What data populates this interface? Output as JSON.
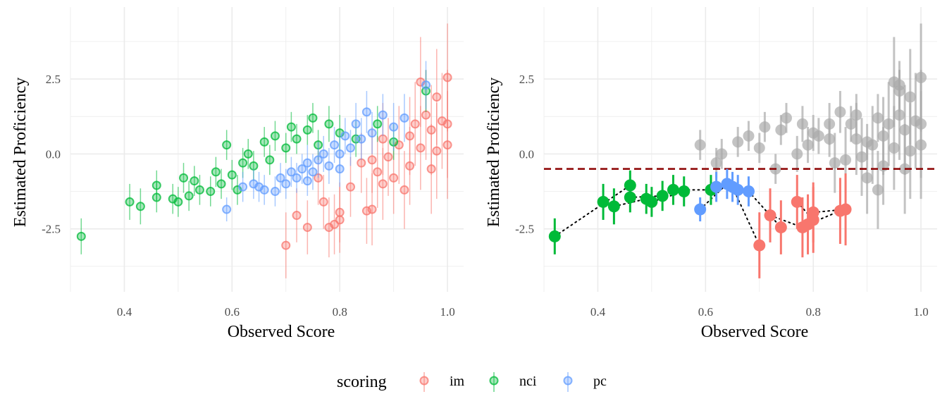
{
  "chart_data": [
    {
      "type": "scatter",
      "panel": "left",
      "xlabel": "Observed Score",
      "ylabel": "Estimated Proficiency",
      "xlim": [
        0.3,
        1.03
      ],
      "ylim": [
        -4.6,
        4.9
      ],
      "xticks": [
        0.4,
        0.6,
        0.8,
        1.0
      ],
      "xtick_labels": [
        "0.4",
        "0.6",
        "0.8",
        "1.0"
      ],
      "yticks": [
        -2.5,
        0.0,
        2.5
      ],
      "ytick_labels": [
        "-2.5",
        "0.0",
        "2.5"
      ],
      "grid": true,
      "error_bars": "vertical",
      "series": [
        {
          "name": "im",
          "color": "#F8766D",
          "points": [
            [
              0.7,
              -3.05,
              1.1
            ],
            [
              0.72,
              -2.05,
              0.9
            ],
            [
              0.74,
              -2.45,
              0.9
            ],
            [
              0.77,
              -1.6,
              0.9
            ],
            [
              0.78,
              -2.45,
              1.0
            ],
            [
              0.79,
              -2.35,
              1.0
            ],
            [
              0.8,
              -2.2,
              1.1
            ],
            [
              0.8,
              -1.95,
              1.0
            ],
            [
              0.84,
              -0.3,
              1.0
            ],
            [
              0.85,
              -1.9,
              1.1
            ],
            [
              0.86,
              -1.85,
              1.2
            ],
            [
              0.86,
              -0.2,
              1.1
            ],
            [
              0.87,
              -0.6,
              1.2
            ],
            [
              0.88,
              -1.0,
              1.2
            ],
            [
              0.89,
              -0.1,
              1.3
            ],
            [
              0.9,
              -0.8,
              1.2
            ],
            [
              0.91,
              0.3,
              1.3
            ],
            [
              0.92,
              -1.2,
              1.3
            ],
            [
              0.93,
              0.6,
              1.3
            ],
            [
              0.93,
              -0.4,
              1.3
            ],
            [
              0.94,
              1.0,
              1.4
            ],
            [
              0.95,
              0.2,
              1.4
            ],
            [
              0.95,
              2.4,
              1.5
            ],
            [
              0.96,
              1.3,
              1.5
            ],
            [
              0.97,
              0.8,
              1.5
            ],
            [
              0.97,
              -0.5,
              1.5
            ],
            [
              0.98,
              1.9,
              1.6
            ],
            [
              0.98,
              0.1,
              1.6
            ],
            [
              0.99,
              1.1,
              1.6
            ],
            [
              1.0,
              2.55,
              1.8
            ],
            [
              1.0,
              0.3,
              1.8
            ],
            [
              1.0,
              1.0,
              1.8
            ],
            [
              0.76,
              -0.8,
              0.9
            ],
            [
              0.82,
              -1.1,
              1.0
            ],
            [
              0.88,
              0.5,
              1.2
            ]
          ]
        },
        {
          "name": "nci",
          "color": "#00BA38",
          "points": [
            [
              0.32,
              -2.75,
              0.6
            ],
            [
              0.41,
              -1.6,
              0.6
            ],
            [
              0.43,
              -1.75,
              0.6
            ],
            [
              0.46,
              -1.05,
              0.5
            ],
            [
              0.46,
              -1.45,
              0.5
            ],
            [
              0.49,
              -1.5,
              0.5
            ],
            [
              0.5,
              -1.6,
              0.5
            ],
            [
              0.51,
              -0.8,
              0.5
            ],
            [
              0.52,
              -1.4,
              0.5
            ],
            [
              0.53,
              -0.9,
              0.5
            ],
            [
              0.54,
              -1.2,
              0.5
            ],
            [
              0.56,
              -1.25,
              0.5
            ],
            [
              0.57,
              -0.6,
              0.5
            ],
            [
              0.58,
              -1.0,
              0.5
            ],
            [
              0.59,
              0.3,
              0.5
            ],
            [
              0.6,
              -0.7,
              0.5
            ],
            [
              0.61,
              -1.2,
              0.5
            ],
            [
              0.62,
              -0.3,
              0.5
            ],
            [
              0.63,
              0.0,
              0.5
            ],
            [
              0.64,
              -0.4,
              0.5
            ],
            [
              0.66,
              0.4,
              0.5
            ],
            [
              0.67,
              -0.2,
              0.5
            ],
            [
              0.68,
              0.6,
              0.5
            ],
            [
              0.7,
              0.2,
              0.5
            ],
            [
              0.71,
              0.9,
              0.5
            ],
            [
              0.72,
              0.5,
              0.5
            ],
            [
              0.74,
              0.8,
              0.5
            ],
            [
              0.75,
              1.2,
              0.5
            ],
            [
              0.76,
              0.3,
              0.5
            ],
            [
              0.78,
              1.0,
              0.6
            ],
            [
              0.8,
              0.7,
              0.6
            ],
            [
              0.83,
              0.5,
              0.6
            ],
            [
              0.87,
              1.0,
              0.6
            ],
            [
              0.9,
              0.4,
              0.6
            ],
            [
              0.96,
              2.1,
              0.7
            ]
          ]
        },
        {
          "name": "pc",
          "color": "#619CFF",
          "points": [
            [
              0.59,
              -1.85,
              0.4
            ],
            [
              0.62,
              -1.1,
              0.5
            ],
            [
              0.64,
              -1.0,
              0.5
            ],
            [
              0.65,
              -1.1,
              0.5
            ],
            [
              0.66,
              -1.2,
              0.5
            ],
            [
              0.68,
              -1.25,
              0.5
            ],
            [
              0.69,
              -0.8,
              0.5
            ],
            [
              0.7,
              -1.0,
              0.5
            ],
            [
              0.71,
              -0.6,
              0.5
            ],
            [
              0.72,
              -0.8,
              0.5
            ],
            [
              0.73,
              -0.5,
              0.5
            ],
            [
              0.74,
              -0.3,
              0.6
            ],
            [
              0.75,
              -0.6,
              0.6
            ],
            [
              0.76,
              -0.2,
              0.6
            ],
            [
              0.77,
              0.0,
              0.6
            ],
            [
              0.78,
              -0.4,
              0.6
            ],
            [
              0.79,
              0.3,
              0.6
            ],
            [
              0.8,
              0.0,
              0.6
            ],
            [
              0.81,
              0.6,
              0.6
            ],
            [
              0.82,
              0.2,
              0.6
            ],
            [
              0.83,
              1.0,
              0.7
            ],
            [
              0.84,
              0.5,
              0.7
            ],
            [
              0.85,
              1.4,
              0.7
            ],
            [
              0.86,
              0.7,
              0.7
            ],
            [
              0.88,
              1.3,
              0.7
            ],
            [
              0.9,
              0.9,
              0.8
            ],
            [
              0.92,
              1.2,
              0.8
            ],
            [
              0.96,
              2.3,
              0.8
            ],
            [
              0.74,
              -0.9,
              0.5
            ],
            [
              0.8,
              -0.5,
              0.6
            ]
          ]
        }
      ]
    },
    {
      "type": "scatter",
      "panel": "right",
      "xlabel": "Observed Score",
      "ylabel": "Estimated Proficiency",
      "xlim": [
        0.3,
        1.03
      ],
      "ylim": [
        -4.6,
        4.9
      ],
      "xticks": [
        0.4,
        0.6,
        0.8,
        1.0
      ],
      "xtick_labels": [
        "0.4",
        "0.6",
        "0.8",
        "1.0"
      ],
      "yticks": [
        -2.5,
        0.0,
        2.5
      ],
      "ytick_labels": [
        "-2.5",
        "0.0",
        "2.5"
      ],
      "grid": true,
      "reference_line": {
        "y": -0.5,
        "style": "dashed",
        "color": "#8B0000"
      },
      "highlight_threshold": -0.5,
      "background_color": "#AAAAAA",
      "connector_style": "dotted",
      "series": [
        {
          "name": "im",
          "color": "#F8766D",
          "points": [
            [
              0.7,
              -3.05,
              1.1
            ],
            [
              0.72,
              -2.05,
              0.9
            ],
            [
              0.74,
              -2.45,
              0.9
            ],
            [
              0.77,
              -1.6,
              0.9
            ],
            [
              0.78,
              -2.45,
              1.0
            ],
            [
              0.79,
              -2.35,
              1.0
            ],
            [
              0.8,
              -2.2,
              1.1
            ],
            [
              0.8,
              -1.95,
              1.0
            ],
            [
              0.85,
              -1.9,
              1.1
            ],
            [
              0.86,
              -1.85,
              1.2
            ]
          ]
        },
        {
          "name": "nci",
          "color": "#00BA38",
          "points": [
            [
              0.32,
              -2.75,
              0.6
            ],
            [
              0.41,
              -1.6,
              0.6
            ],
            [
              0.43,
              -1.75,
              0.6
            ],
            [
              0.46,
              -1.05,
              0.5
            ],
            [
              0.46,
              -1.45,
              0.5
            ],
            [
              0.49,
              -1.5,
              0.5
            ],
            [
              0.5,
              -1.6,
              0.5
            ],
            [
              0.52,
              -1.4,
              0.5
            ],
            [
              0.54,
              -1.2,
              0.5
            ],
            [
              0.56,
              -1.25,
              0.5
            ],
            [
              0.61,
              -1.2,
              0.5
            ]
          ]
        },
        {
          "name": "pc",
          "color": "#619CFF",
          "points": [
            [
              0.59,
              -1.85,
              0.4
            ],
            [
              0.62,
              -1.1,
              0.5
            ],
            [
              0.64,
              -1.0,
              0.5
            ],
            [
              0.65,
              -1.1,
              0.5
            ],
            [
              0.66,
              -1.2,
              0.5
            ],
            [
              0.68,
              -1.25,
              0.5
            ]
          ]
        },
        {
          "name": "background",
          "color": "#AAAAAA",
          "points": [
            [
              0.59,
              0.3,
              0.5
            ],
            [
              0.62,
              -0.3,
              0.5
            ],
            [
              0.63,
              0.0,
              0.5
            ],
            [
              0.66,
              0.4,
              0.5
            ],
            [
              0.68,
              0.6,
              0.5
            ],
            [
              0.7,
              0.2,
              0.5
            ],
            [
              0.71,
              0.9,
              0.5
            ],
            [
              0.74,
              0.8,
              0.5
            ],
            [
              0.75,
              1.2,
              0.5
            ],
            [
              0.78,
              1.0,
              0.6
            ],
            [
              0.8,
              0.7,
              0.6
            ],
            [
              0.83,
              0.5,
              0.6
            ],
            [
              0.87,
              1.0,
              0.6
            ],
            [
              0.9,
              0.4,
              0.6
            ],
            [
              0.96,
              2.1,
              0.7
            ],
            [
              0.73,
              -0.5,
              0.5
            ],
            [
              0.77,
              0.0,
              0.6
            ],
            [
              0.79,
              0.3,
              0.6
            ],
            [
              0.81,
              0.6,
              0.6
            ],
            [
              0.83,
              1.0,
              0.7
            ],
            [
              0.85,
              1.4,
              0.7
            ],
            [
              0.88,
              1.3,
              0.7
            ],
            [
              0.92,
              1.2,
              0.8
            ],
            [
              0.96,
              2.3,
              0.8
            ],
            [
              0.84,
              -0.3,
              1.0
            ],
            [
              0.86,
              -0.2,
              1.1
            ],
            [
              0.89,
              -0.1,
              1.3
            ],
            [
              0.91,
              0.3,
              1.3
            ],
            [
              0.93,
              0.6,
              1.3
            ],
            [
              0.94,
              1.0,
              1.4
            ],
            [
              0.95,
              0.2,
              1.4
            ],
            [
              0.95,
              2.4,
              1.5
            ],
            [
              0.96,
              1.3,
              1.5
            ],
            [
              0.97,
              0.8,
              1.5
            ],
            [
              0.98,
              1.9,
              1.6
            ],
            [
              0.98,
              0.1,
              1.6
            ],
            [
              0.99,
              1.1,
              1.6
            ],
            [
              1.0,
              2.55,
              1.8
            ],
            [
              1.0,
              0.3,
              1.8
            ],
            [
              1.0,
              1.0,
              1.8
            ],
            [
              0.88,
              0.5,
              1.2
            ],
            [
              0.93,
              -0.4,
              1.3
            ],
            [
              0.97,
              -0.5,
              1.5
            ],
            [
              0.9,
              -0.8,
              1.2
            ],
            [
              0.92,
              -1.2,
              1.3
            ]
          ]
        }
      ]
    }
  ],
  "legend": {
    "title": "scoring",
    "items": [
      {
        "label": "im",
        "color": "#F8766D"
      },
      {
        "label": "nci",
        "color": "#00BA38"
      },
      {
        "label": "pc",
        "color": "#619CFF"
      }
    ]
  }
}
